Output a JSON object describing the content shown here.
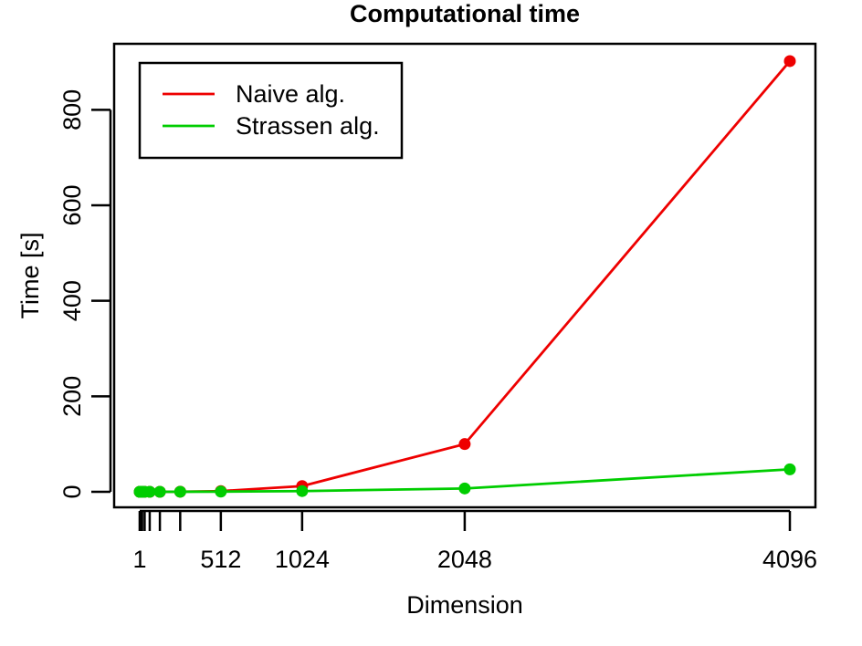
{
  "chart_data": {
    "type": "line",
    "title": "Computational time",
    "xlabel": "Dimension",
    "ylabel": "Time [s]",
    "xlim": [
      -19,
      4096
    ],
    "ylim": [
      -30,
      900
    ],
    "x_ticks": [
      1,
      2,
      4,
      8,
      16,
      32,
      64,
      128,
      256,
      512,
      1024,
      2048,
      4096
    ],
    "x_tick_labels": [
      {
        "x": 1,
        "label": "1"
      },
      {
        "x": 512,
        "label": "512"
      },
      {
        "x": 1024,
        "label": "1024"
      },
      {
        "x": 2048,
        "label": "2048"
      },
      {
        "x": 4096,
        "label": "4096"
      }
    ],
    "y_ticks": [
      0,
      200,
      400,
      600,
      800
    ],
    "grid": false,
    "legend_position": "top-left",
    "x": [
      1,
      2,
      4,
      8,
      16,
      32,
      64,
      128,
      256,
      512,
      1024,
      2048,
      4096
    ],
    "series": [
      {
        "name": "Naive alg.",
        "color": "#ee0000",
        "values": [
          0,
          0,
          0,
          0,
          0,
          0,
          0,
          0,
          0.2,
          1.5,
          12,
          100,
          902
        ]
      },
      {
        "name": "Strassen alg.",
        "color": "#00cd00",
        "values": [
          0,
          0,
          0,
          0,
          0,
          0,
          0,
          0,
          0.1,
          0.4,
          1.5,
          7,
          47
        ]
      }
    ]
  }
}
